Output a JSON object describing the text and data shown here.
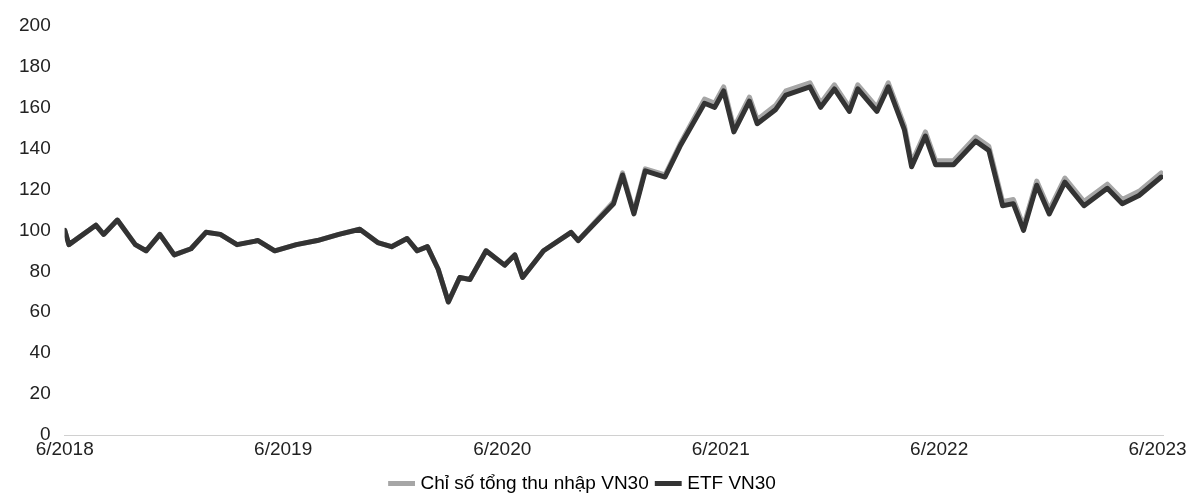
{
  "chart_data": {
    "type": "line",
    "x": [
      "2018-06-01",
      "2018-06-08",
      "2018-07-23",
      "2018-08-05",
      "2018-08-28",
      "2018-09-27",
      "2018-10-15",
      "2018-11-07",
      "2018-12-01",
      "2018-12-29",
      "2019-01-23",
      "2019-02-16",
      "2019-03-16",
      "2019-04-20",
      "2019-05-18",
      "2019-06-23",
      "2019-07-28",
      "2019-09-02",
      "2019-10-07",
      "2019-11-06",
      "2019-11-29",
      "2019-12-25",
      "2020-01-11",
      "2020-01-28",
      "2020-02-15",
      "2020-03-03",
      "2020-03-22",
      "2020-04-08",
      "2020-05-05",
      "2020-06-05",
      "2020-06-22",
      "2020-07-05",
      "2020-08-09",
      "2020-09-24",
      "2020-10-06",
      "2020-12-04",
      "2020-12-19",
      "2021-01-07",
      "2021-01-26",
      "2021-02-28",
      "2021-03-25",
      "2021-05-05",
      "2021-05-22",
      "2021-06-06",
      "2021-06-23",
      "2021-07-19",
      "2021-08-01",
      "2021-09-01",
      "2021-09-18",
      "2021-10-28",
      "2021-11-15",
      "2021-12-08",
      "2022-01-02",
      "2022-01-16",
      "2022-02-17",
      "2022-03-08",
      "2022-04-04",
      "2022-04-16",
      "2022-05-09",
      "2022-05-26",
      "2022-06-25",
      "2022-08-01",
      "2022-08-23",
      "2022-09-15",
      "2022-10-03",
      "2022-10-20",
      "2022-11-11",
      "2022-12-02",
      "2022-12-28",
      "2023-01-29",
      "2023-03-09",
      "2023-04-03",
      "2023-05-01",
      "2023-06-07"
    ],
    "series": [
      {
        "name": "Chỉ số tổng thu nhập VN30",
        "color": "#a6a6a6",
        "values": [
          100,
          93,
          102.5,
          98,
          105,
          93,
          90,
          98,
          88,
          91,
          99,
          98,
          93,
          95,
          90,
          93,
          95,
          98,
          100.5,
          94,
          92,
          96,
          90,
          92,
          81,
          65,
          77,
          76,
          90,
          83,
          88,
          77,
          90,
          99,
          95,
          114,
          128,
          109,
          130,
          127,
          142,
          164,
          162,
          170,
          150,
          165,
          154,
          161,
          168,
          172,
          162,
          171,
          160,
          171,
          160,
          172,
          151,
          133,
          148,
          134,
          134,
          145.5,
          141,
          114,
          115,
          102,
          124,
          110,
          125.5,
          114,
          122.5,
          115,
          119,
          128
        ]
      },
      {
        "name": "ETF VN30",
        "color": "#333333",
        "values": [
          100,
          93,
          102.5,
          98,
          105,
          93,
          90,
          98,
          88,
          91,
          99,
          98,
          93,
          95,
          90,
          93,
          95,
          98,
          100.5,
          94,
          92,
          96,
          90,
          92,
          81,
          65,
          77,
          76,
          90,
          83,
          88,
          77,
          90,
          99,
          95,
          113,
          127,
          108,
          129,
          126,
          141,
          162,
          160,
          168,
          148,
          163,
          152,
          159,
          166,
          170,
          160,
          169,
          158,
          169,
          158,
          170,
          149,
          131,
          146,
          132,
          132,
          143.5,
          139,
          112,
          113,
          100,
          122,
          108,
          123.5,
          112,
          120.5,
          113,
          117,
          126
        ]
      }
    ],
    "xlim": [
      "2018-06-01",
      "2023-06-10"
    ],
    "xticks": [
      {
        "value": "2018-06-01",
        "label": "6/2018"
      },
      {
        "value": "2019-06-01",
        "label": "6/2019"
      },
      {
        "value": "2020-06-01",
        "label": "6/2020"
      },
      {
        "value": "2021-06-01",
        "label": "6/2021"
      },
      {
        "value": "2022-06-01",
        "label": "6/2022"
      },
      {
        "value": "2023-06-01",
        "label": "6/2023"
      }
    ],
    "ylim": [
      0,
      200
    ],
    "yticks": [
      0,
      20,
      40,
      60,
      80,
      100,
      120,
      140,
      160,
      180,
      200
    ],
    "legend": "bottom",
    "marker": "none",
    "line_style": "solid"
  }
}
